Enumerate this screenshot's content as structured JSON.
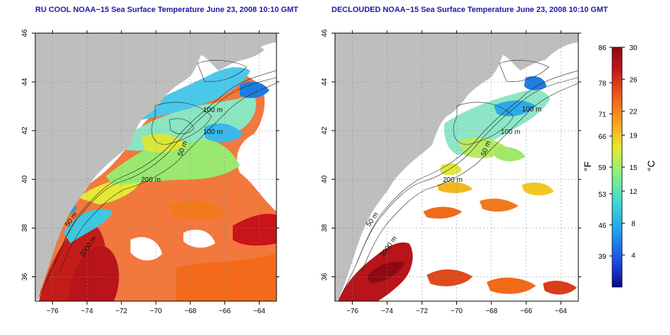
{
  "titles": {
    "left": "RU COOL NOAA−15 Sea Surface Temperature June 23, 2008 10:10 GMT",
    "right": "DECLOUDED NOAA−15 Sea Surface Temperature June 23, 2008 10:10 GMT"
  },
  "axes": {
    "lat_ticks": [
      36,
      38,
      40,
      42,
      44,
      46
    ],
    "lon_ticks": [
      -76,
      -74,
      -72,
      -70,
      -68,
      -66,
      -64
    ],
    "lat_range": [
      35,
      46
    ],
    "lon_range": [
      -77,
      -63
    ]
  },
  "contour_labels_left": [
    "100 m",
    "100 m",
    "50 m",
    "200 m",
    "50 m",
    "2000 m"
  ],
  "contour_labels_right": [
    "100 m",
    "100 m",
    "50 m",
    "200 m",
    "50 m",
    "2000 m"
  ],
  "colorbar": {
    "fahrenheit_ticks": [
      "86",
      "78",
      "71",
      "66",
      "59",
      "53",
      "46",
      "39"
    ],
    "celsius_ticks": [
      "30",
      "26",
      "22",
      "19",
      "15",
      "12",
      "8",
      "4"
    ],
    "fahrenheit_label": "°F",
    "celsius_label": "°C",
    "range_c": [
      0,
      30
    ],
    "colors": [
      "#0a0a8c",
      "#1f4fe6",
      "#1ea6f0",
      "#3fdcd2",
      "#8ef07a",
      "#e8ea2c",
      "#f8a61e",
      "#f05a18",
      "#c4141a",
      "#8e0a10"
    ]
  }
}
